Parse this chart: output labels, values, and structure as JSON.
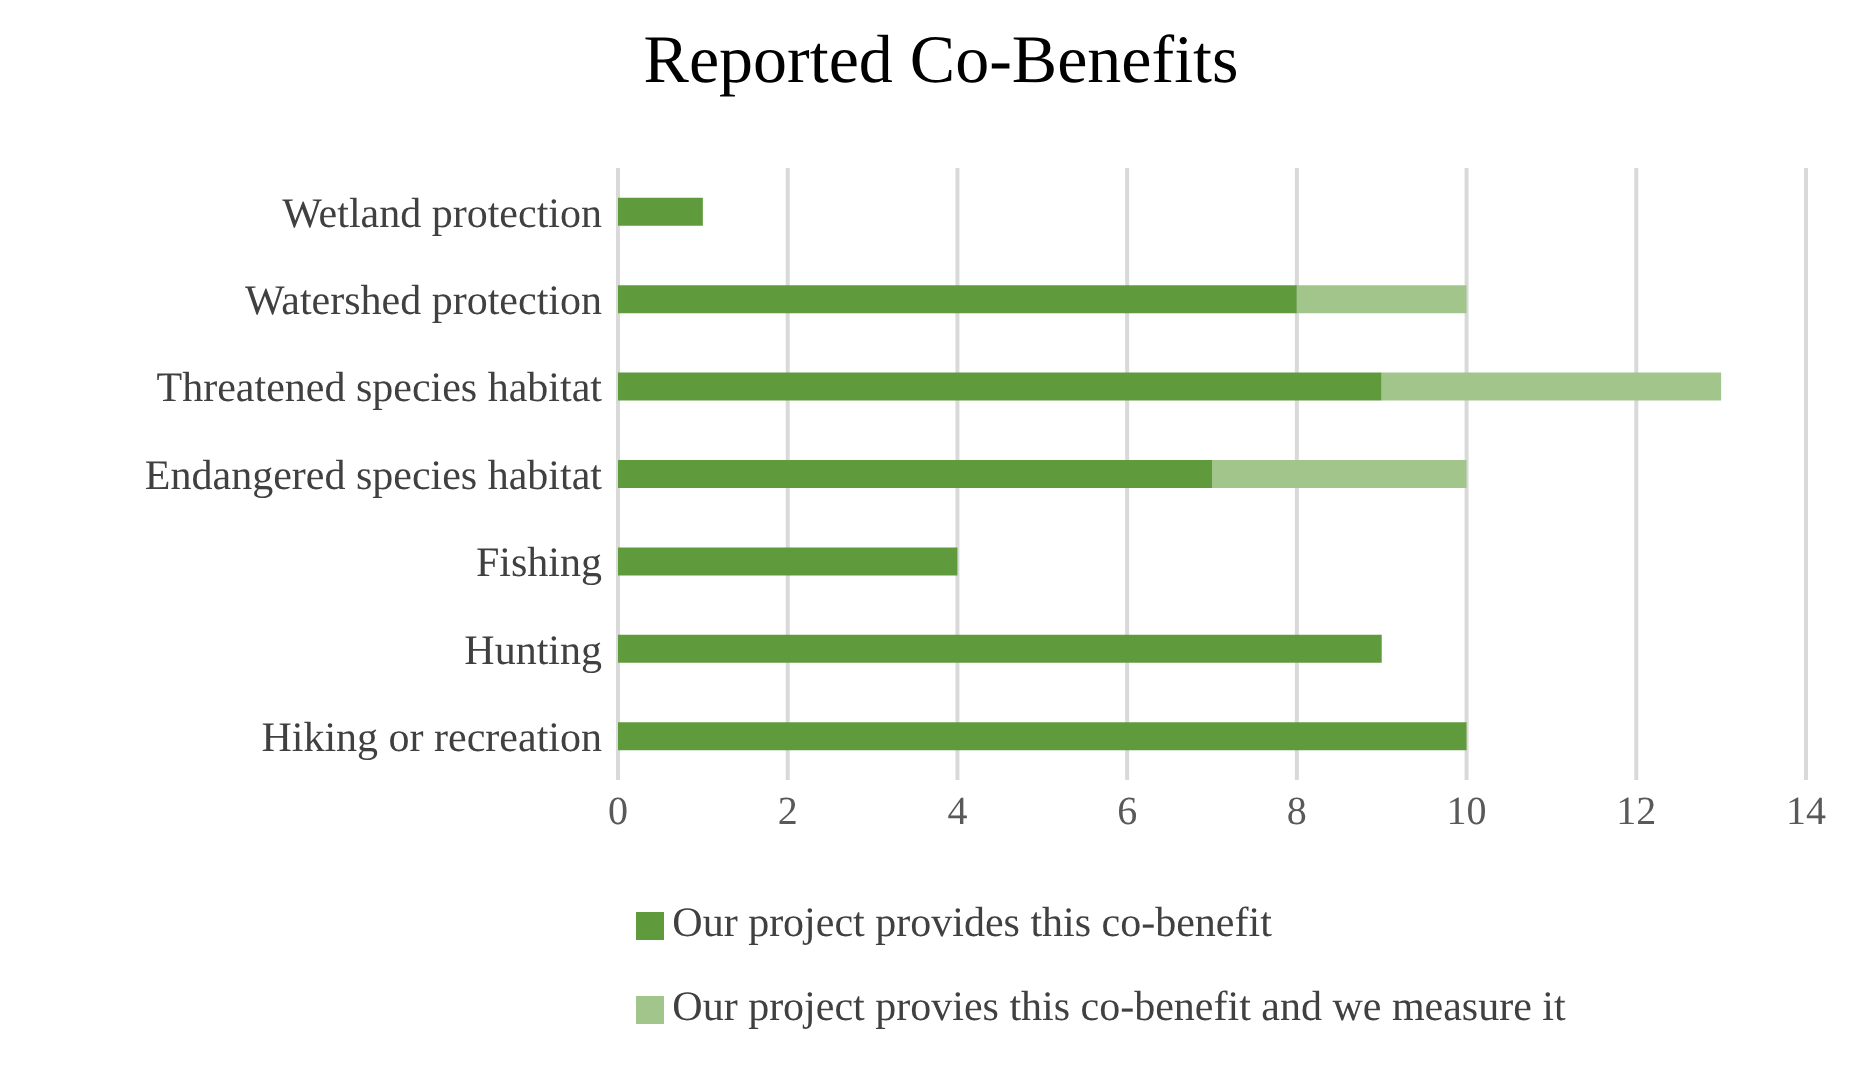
{
  "chart_data": {
    "type": "bar",
    "orientation": "horizontal",
    "stacked": true,
    "title": "Reported Co-Benefits",
    "categories": [
      "Wetland protection",
      "Watershed protection",
      "Threatened species habitat",
      "Endangered species habitat",
      "Fishing",
      "Hunting",
      "Hiking or recreation"
    ],
    "series": [
      {
        "name": "Our project provides this co-benefit",
        "color": "#5f9a3c",
        "values": [
          1,
          8,
          9,
          7,
          4,
          9,
          10
        ]
      },
      {
        "name": "Our project provies this co-benefit and we measure it",
        "color": "#a1c58a",
        "values": [
          0,
          2,
          4,
          3,
          0,
          0,
          0
        ]
      }
    ],
    "xlim": [
      0,
      14
    ],
    "xticks": [
      0,
      2,
      4,
      6,
      8,
      10,
      12,
      14
    ],
    "grid": "x",
    "legend": "bottom"
  }
}
